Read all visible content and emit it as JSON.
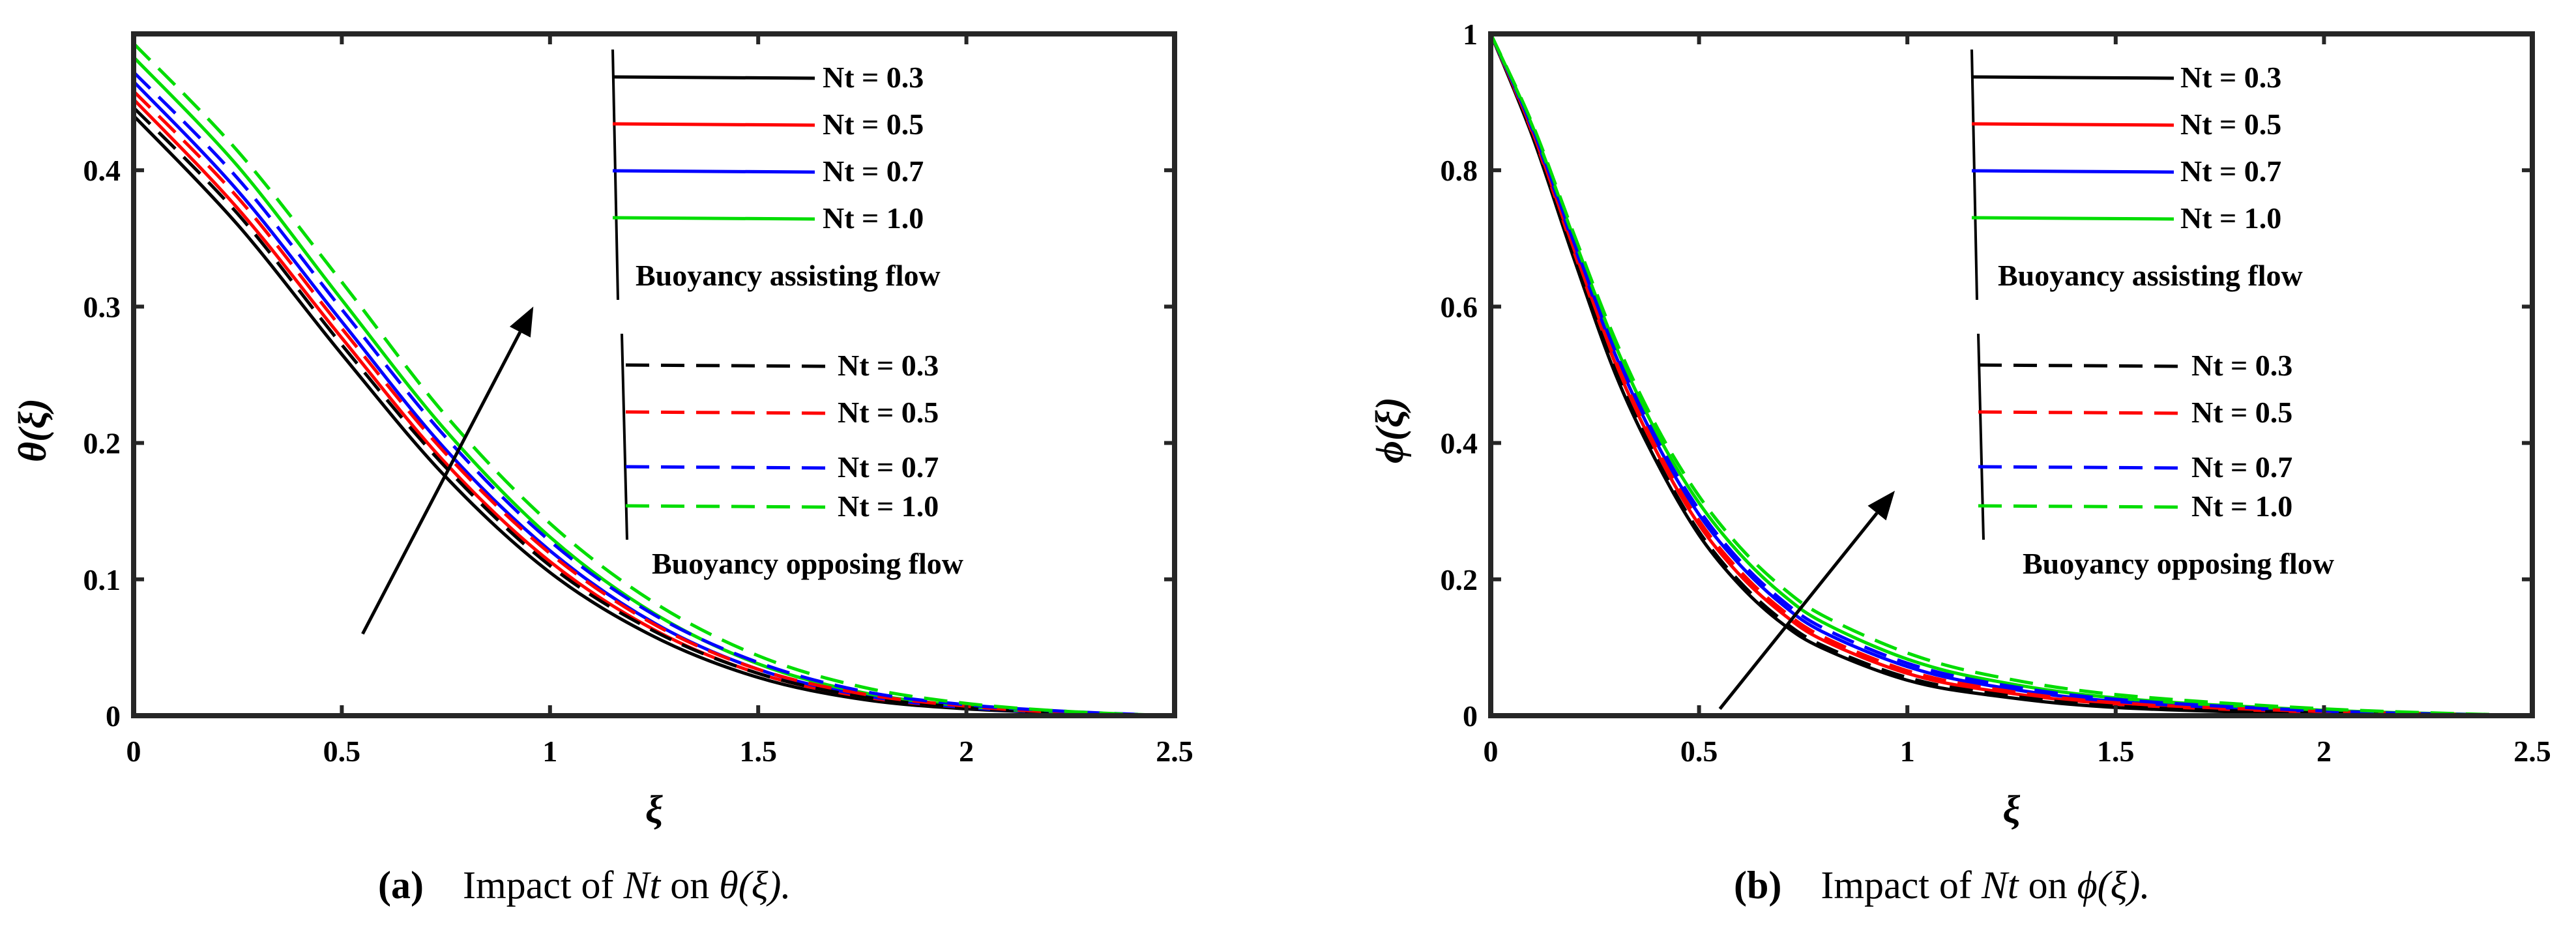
{
  "chart_data": [
    {
      "type": "line",
      "id": "a",
      "ylabel": "θ(ξ)",
      "xlabel": "ξ",
      "xlim": [
        0,
        2.5
      ],
      "ylim": [
        0,
        0.5
      ],
      "xticks": [
        "0",
        "0.5",
        "1",
        "1.5",
        "2",
        "2.5"
      ],
      "xtick_values": [
        0,
        0.5,
        1,
        1.5,
        2,
        2.5
      ],
      "yticks": [
        "0",
        "0.1",
        "0.2",
        "0.3",
        "0.4"
      ],
      "ytick_values": [
        0,
        0.1,
        0.2,
        0.3,
        0.4
      ],
      "caption": {
        "label": "(a)",
        "pre": "Impact of ",
        "var": "Nt",
        "mid": " on ",
        "func": "θ(ξ).",
        "post": ""
      },
      "legend_groups": [
        {
          "title": "Buoyancy assisting flow",
          "style": "solid",
          "entries": [
            "Nt = 0.3",
            "Nt = 0.5",
            "Nt = 0.7",
            "Nt = 1.0"
          ]
        },
        {
          "title": "Buoyancy opposing flow",
          "style": "dashed",
          "entries": [
            "Nt = 0.3",
            "Nt = 0.5",
            "Nt = 0.7",
            "Nt = 1.0"
          ]
        }
      ],
      "arrow": {
        "from": [
          0.55,
          0.06
        ],
        "to": [
          0.96,
          0.3
        ]
      },
      "series": [
        {
          "name": "Nt = 0.3",
          "flow": "assisting",
          "color": "#000000",
          "style": "solid",
          "x": [
            0,
            0.25,
            0.5,
            0.75,
            1.0,
            1.25,
            1.5,
            1.75,
            2.0,
            2.25,
            2.5
          ],
          "y": [
            0.44,
            0.36,
            0.265,
            0.175,
            0.105,
            0.058,
            0.028,
            0.012,
            0.005,
            0.002,
            0
          ]
        },
        {
          "name": "Nt = 0.5",
          "flow": "assisting",
          "color": "#ff0000",
          "style": "solid",
          "x": [
            0,
            0.25,
            0.5,
            0.75,
            1.0,
            1.25,
            1.5,
            1.75,
            2.0,
            2.25,
            2.5
          ],
          "y": [
            0.452,
            0.372,
            0.277,
            0.185,
            0.113,
            0.063,
            0.031,
            0.014,
            0.006,
            0.002,
            0
          ]
        },
        {
          "name": "Nt = 0.7",
          "flow": "assisting",
          "color": "#0000ff",
          "style": "solid",
          "x": [
            0,
            0.25,
            0.5,
            0.75,
            1.0,
            1.25,
            1.5,
            1.75,
            2.0,
            2.25,
            2.5
          ],
          "y": [
            0.465,
            0.385,
            0.289,
            0.195,
            0.121,
            0.068,
            0.034,
            0.015,
            0.006,
            0.002,
            0
          ]
        },
        {
          "name": "Nt = 1.0",
          "flow": "assisting",
          "color": "#00dd00",
          "style": "solid",
          "x": [
            0,
            0.25,
            0.5,
            0.75,
            1.0,
            1.25,
            1.5,
            1.75,
            2.0,
            2.25,
            2.5
          ],
          "y": [
            0.483,
            0.403,
            0.305,
            0.209,
            0.131,
            0.075,
            0.038,
            0.017,
            0.007,
            0.002,
            0
          ]
        },
        {
          "name": "Nt = 0.3",
          "flow": "opposing",
          "color": "#000000",
          "style": "dashed",
          "x": [
            0,
            0.25,
            0.5,
            0.75,
            1.0,
            1.25,
            1.5,
            1.75,
            2.0,
            2.25,
            2.5
          ],
          "y": [
            0.446,
            0.368,
            0.272,
            0.182,
            0.11,
            0.062,
            0.031,
            0.014,
            0.006,
            0.002,
            0
          ]
        },
        {
          "name": "Nt = 0.5",
          "flow": "opposing",
          "color": "#ff0000",
          "style": "dashed",
          "x": [
            0,
            0.25,
            0.5,
            0.75,
            1.0,
            1.25,
            1.5,
            1.75,
            2.0,
            2.25,
            2.5
          ],
          "y": [
            0.458,
            0.38,
            0.284,
            0.192,
            0.119,
            0.067,
            0.034,
            0.016,
            0.007,
            0.002,
            0
          ]
        },
        {
          "name": "Nt = 0.7",
          "flow": "opposing",
          "color": "#0000ff",
          "style": "dashed",
          "x": [
            0,
            0.25,
            0.5,
            0.75,
            1.0,
            1.25,
            1.5,
            1.75,
            2.0,
            2.25,
            2.5
          ],
          "y": [
            0.472,
            0.394,
            0.298,
            0.204,
            0.128,
            0.074,
            0.039,
            0.018,
            0.008,
            0.003,
            0
          ]
        },
        {
          "name": "Nt = 1.0",
          "flow": "opposing",
          "color": "#00dd00",
          "style": "dashed",
          "x": [
            0,
            0.25,
            0.5,
            0.75,
            1.0,
            1.25,
            1.5,
            1.75,
            2.0,
            2.25,
            2.5
          ],
          "y": [
            0.493,
            0.414,
            0.318,
            0.22,
            0.141,
            0.083,
            0.044,
            0.021,
            0.009,
            0.003,
            0
          ]
        }
      ]
    },
    {
      "type": "line",
      "id": "b",
      "ylabel": "ϕ(ξ)",
      "xlabel": "ξ",
      "xlim": [
        0,
        2.5
      ],
      "ylim": [
        0,
        1
      ],
      "xticks": [
        "0",
        "0.5",
        "1",
        "1.5",
        "2",
        "2.5"
      ],
      "xtick_values": [
        0,
        0.5,
        1,
        1.5,
        2,
        2.5
      ],
      "yticks": [
        "0",
        "0.2",
        "0.4",
        "0.6",
        "0.8",
        "1"
      ],
      "ytick_values": [
        0,
        0.2,
        0.4,
        0.6,
        0.8,
        1
      ],
      "caption": {
        "label": "(b)",
        "pre": "Impact of ",
        "var": "Nt",
        "mid": " on ",
        "func": "ϕ(ξ).",
        "post": ""
      },
      "legend_groups": [
        {
          "title": "Buoyancy assisting flow",
          "style": "solid",
          "entries": [
            "Nt = 0.3",
            "Nt = 0.5",
            "Nt = 0.7",
            "Nt = 1.0"
          ]
        },
        {
          "title": "Buoyancy opposing flow",
          "style": "dashed",
          "entries": [
            "Nt = 0.3",
            "Nt = 0.5",
            "Nt = 0.7",
            "Nt = 1.0"
          ]
        }
      ],
      "arrow": {
        "from": [
          0.55,
          0.01
        ],
        "to": [
          0.97,
          0.33
        ]
      },
      "series": [
        {
          "name": "Nt = 0.3",
          "flow": "assisting",
          "color": "#000000",
          "style": "solid",
          "x": [
            0,
            0.1,
            0.2,
            0.3,
            0.4,
            0.5,
            0.6,
            0.7,
            0.8,
            1.0,
            1.2,
            1.5,
            2.0,
            2.5
          ],
          "y": [
            1,
            0.85,
            0.67,
            0.5,
            0.37,
            0.265,
            0.19,
            0.135,
            0.098,
            0.052,
            0.03,
            0.012,
            0.003,
            0
          ]
        },
        {
          "name": "Nt = 0.5",
          "flow": "assisting",
          "color": "#ff0000",
          "style": "solid",
          "x": [
            0,
            0.1,
            0.2,
            0.3,
            0.4,
            0.5,
            0.6,
            0.7,
            0.8,
            1.0,
            1.2,
            1.5,
            2.0,
            2.5
          ],
          "y": [
            1,
            0.855,
            0.68,
            0.515,
            0.385,
            0.28,
            0.205,
            0.15,
            0.11,
            0.062,
            0.037,
            0.017,
            0.005,
            0
          ]
        },
        {
          "name": "Nt = 0.7",
          "flow": "assisting",
          "color": "#0000ff",
          "style": "solid",
          "x": [
            0,
            0.1,
            0.2,
            0.3,
            0.4,
            0.5,
            0.6,
            0.7,
            0.8,
            1.0,
            1.2,
            1.5,
            2.0,
            2.5
          ],
          "y": [
            1,
            0.86,
            0.69,
            0.528,
            0.398,
            0.295,
            0.22,
            0.163,
            0.122,
            0.072,
            0.044,
            0.021,
            0.006,
            0
          ]
        },
        {
          "name": "Nt = 1.0",
          "flow": "assisting",
          "color": "#00dd00",
          "style": "solid",
          "x": [
            0,
            0.1,
            0.2,
            0.3,
            0.4,
            0.5,
            0.6,
            0.7,
            0.8,
            1.0,
            1.2,
            1.5,
            2.0,
            2.5
          ],
          "y": [
            1,
            0.865,
            0.7,
            0.542,
            0.413,
            0.312,
            0.236,
            0.178,
            0.136,
            0.083,
            0.052,
            0.026,
            0.008,
            0
          ]
        },
        {
          "name": "Nt = 0.3",
          "flow": "opposing",
          "color": "#000000",
          "style": "dashed",
          "x": [
            0,
            0.1,
            0.2,
            0.3,
            0.4,
            0.5,
            0.6,
            0.7,
            0.8,
            1.0,
            1.2,
            1.5,
            2.0,
            2.5
          ],
          "y": [
            1,
            0.852,
            0.673,
            0.505,
            0.375,
            0.27,
            0.195,
            0.14,
            0.102,
            0.056,
            0.033,
            0.014,
            0.004,
            0
          ]
        },
        {
          "name": "Nt = 0.5",
          "flow": "opposing",
          "color": "#ff0000",
          "style": "dashed",
          "x": [
            0,
            0.1,
            0.2,
            0.3,
            0.4,
            0.5,
            0.6,
            0.7,
            0.8,
            1.0,
            1.2,
            1.5,
            2.0,
            2.5
          ],
          "y": [
            1,
            0.857,
            0.684,
            0.52,
            0.39,
            0.286,
            0.211,
            0.155,
            0.115,
            0.066,
            0.04,
            0.019,
            0.006,
            0
          ]
        },
        {
          "name": "Nt = 0.7",
          "flow": "opposing",
          "color": "#0000ff",
          "style": "dashed",
          "x": [
            0,
            0.1,
            0.2,
            0.3,
            0.4,
            0.5,
            0.6,
            0.7,
            0.8,
            1.0,
            1.2,
            1.5,
            2.0,
            2.5
          ],
          "y": [
            1,
            0.862,
            0.694,
            0.533,
            0.404,
            0.302,
            0.226,
            0.169,
            0.128,
            0.077,
            0.048,
            0.024,
            0.007,
            0
          ]
        },
        {
          "name": "Nt = 1.0",
          "flow": "opposing",
          "color": "#00dd00",
          "style": "dashed",
          "x": [
            0,
            0.1,
            0.2,
            0.3,
            0.4,
            0.5,
            0.6,
            0.7,
            0.8,
            1.0,
            1.2,
            1.5,
            2.0,
            2.5
          ],
          "y": [
            1,
            0.868,
            0.706,
            0.55,
            0.422,
            0.322,
            0.246,
            0.188,
            0.146,
            0.092,
            0.059,
            0.031,
            0.01,
            0
          ]
        }
      ]
    }
  ]
}
